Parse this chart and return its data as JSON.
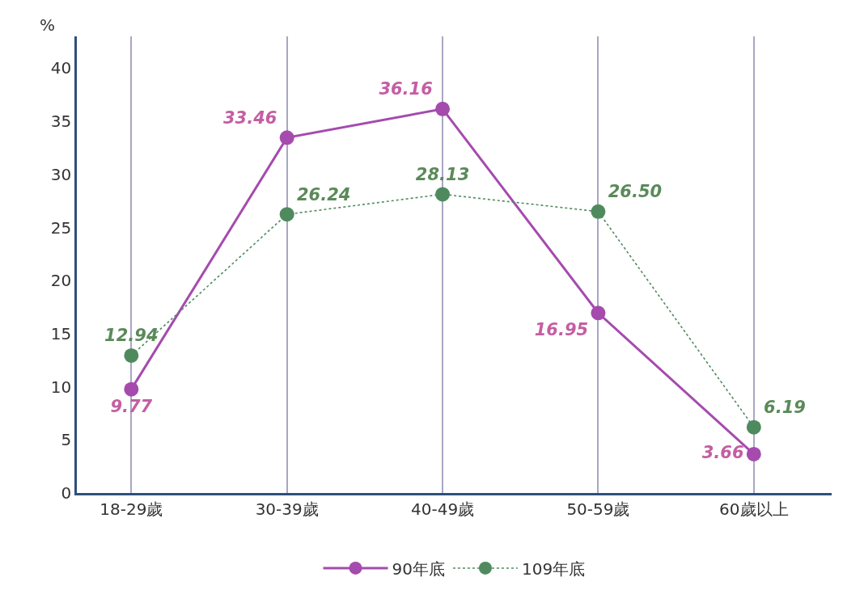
{
  "chart_data": {
    "type": "line",
    "ylabel": "%",
    "categories": [
      "18-29歲",
      "30-39歲",
      "40-49歲",
      "50-59歲",
      "60歲以上"
    ],
    "series": [
      {
        "name": "90年底",
        "color": "#a54bae",
        "values": [
          9.77,
          33.46,
          36.16,
          16.95,
          3.66
        ],
        "value_labels": [
          "9.77",
          "33.46",
          "36.16",
          "16.95",
          "3.66"
        ],
        "line_style": "solid"
      },
      {
        "name": "109年底",
        "color": "#4f8a5f",
        "values": [
          12.94,
          26.24,
          28.13,
          26.5,
          6.19
        ],
        "value_labels": [
          "12.94",
          "26.24",
          "28.13",
          "26.50",
          "6.19"
        ],
        "line_style": "dotted"
      }
    ],
    "ylim": [
      0,
      43
    ],
    "yticks": [
      0,
      5,
      10,
      15,
      20,
      25,
      30,
      35,
      40
    ],
    "grid": "x",
    "legend": "bottom",
    "marker": "circle"
  }
}
